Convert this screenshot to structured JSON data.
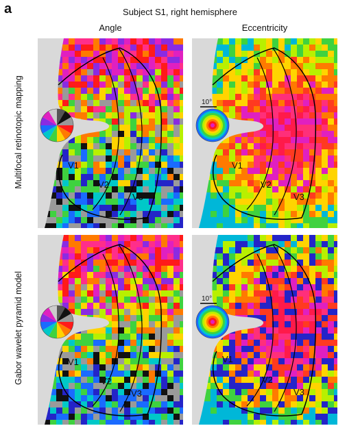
{
  "panel_letter": "a",
  "title": "Subject S1, right hemisphere",
  "columns": [
    "Angle",
    "Eccentricity"
  ],
  "rows": [
    "Multifocal retinotopic mapping",
    "Gabor wavelet pyramid model"
  ],
  "area_labels": [
    "V1",
    "V2",
    "V3"
  ],
  "scale_label": "10°",
  "colors": {
    "background": "#d9d9d9",
    "angle_palette": [
      "#ff1a1a",
      "#ff7a00",
      "#ffd400",
      "#b8f000",
      "#3fd23f",
      "#00c8c8",
      "#1a6bff",
      "#2424c8",
      "#8a2be2",
      "#e020c0",
      "#ff2e8a",
      "#9a9a9a",
      "#111111"
    ],
    "ecc_palette": [
      "#ff1a4a",
      "#ff2f7a",
      "#e020c0",
      "#ff3a20",
      "#ff7a00",
      "#ffd400",
      "#b8f000",
      "#3fd23f",
      "#00b7d8"
    ]
  }
}
